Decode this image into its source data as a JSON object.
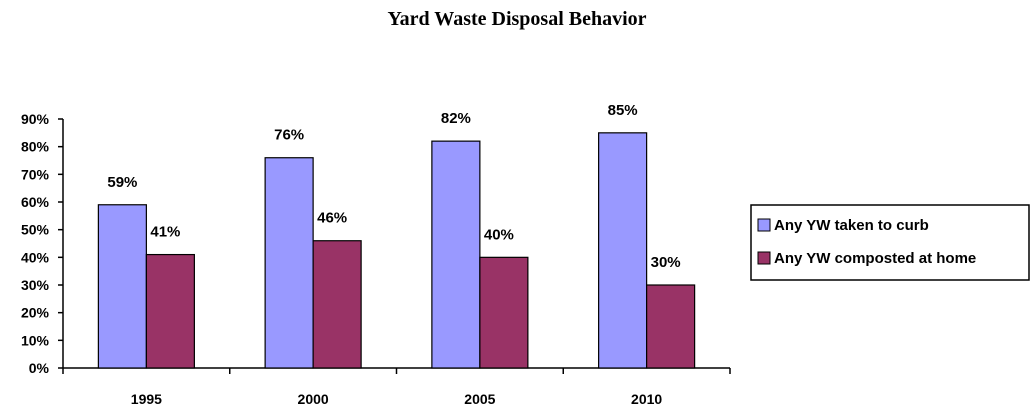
{
  "chart_data": {
    "type": "bar",
    "title": "Yard Waste Disposal Behavior",
    "categories": [
      "1995",
      "2000",
      "2005",
      "2010"
    ],
    "series": [
      {
        "name": "Any YW taken to curb",
        "values": [
          59,
          76,
          82,
          85
        ],
        "labels": [
          "59%",
          "76%",
          "82%",
          "85%"
        ],
        "color": "#9999ff"
      },
      {
        "name": "Any YW composted at home",
        "values": [
          41,
          46,
          40,
          30
        ],
        "labels": [
          "41%",
          "46%",
          "40%",
          "30%"
        ],
        "color": "#993366"
      }
    ],
    "y_ticks": [
      "0%",
      "10%",
      "20%",
      "30%",
      "40%",
      "50%",
      "60%",
      "70%",
      "80%",
      "90%"
    ],
    "ylim": [
      0,
      90
    ],
    "xlabel": "",
    "ylabel": "",
    "grid": false,
    "legend_position": "right"
  }
}
